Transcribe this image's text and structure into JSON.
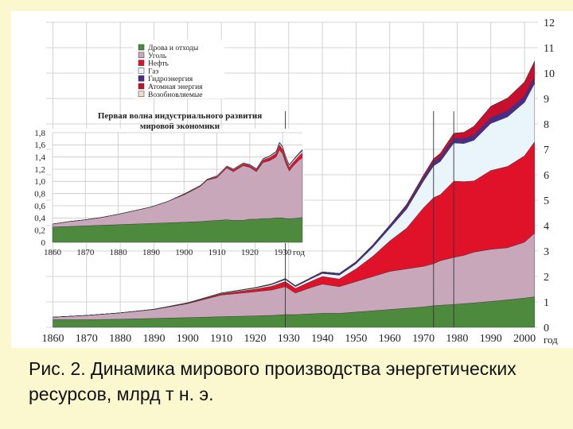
{
  "caption": "Рис. 2. Динамика мирового производства энергетических ресурсов, млрд т н. э.",
  "colors": {
    "wood": "#4e8a3e",
    "coal": "#c9a7bb",
    "oil": "#e0122a",
    "gas": "#eaf4fb",
    "hydro": "#4a2d8a",
    "nuclear": "#c8102e",
    "renewable": "#f2dcc8",
    "panel": "#ffffff",
    "background": "#fbf8d0"
  },
  "chart_data": [
    {
      "type": "area",
      "stacked": true,
      "title": "",
      "xlabel": "год",
      "ylabel": "",
      "x": [
        1860,
        1870,
        1880,
        1890,
        1900,
        1910,
        1920,
        1925,
        1929,
        1932,
        1937,
        1940,
        1945,
        1950,
        1955,
        1960,
        1965,
        1970,
        1973,
        1975,
        1979,
        1982,
        1985,
        1990,
        1995,
        2000,
        2003
      ],
      "xticks": [
        1860,
        1870,
        1880,
        1890,
        1900,
        1910,
        1920,
        1930,
        1940,
        1950,
        1960,
        1970,
        1980,
        1990,
        2000
      ],
      "xlim": [
        1858,
        2004
      ],
      "ylim": [
        0,
        12
      ],
      "yticks": [
        0,
        1,
        2,
        3,
        4,
        5,
        6,
        7,
        8,
        9,
        10,
        11,
        12
      ],
      "grid": true,
      "legend_position": "top-left",
      "series": [
        {
          "name": "Дрова и отходы",
          "key": "wood",
          "values": [
            0.3,
            0.3,
            0.32,
            0.35,
            0.38,
            0.42,
            0.45,
            0.47,
            0.5,
            0.5,
            0.53,
            0.55,
            0.55,
            0.6,
            0.65,
            0.7,
            0.75,
            0.8,
            0.85,
            0.87,
            0.9,
            0.93,
            0.96,
            1.02,
            1.08,
            1.15,
            1.2
          ]
        },
        {
          "name": "Уголь",
          "key": "coal",
          "values": [
            0.1,
            0.17,
            0.25,
            0.35,
            0.55,
            0.85,
            0.95,
            1.0,
            1.1,
            0.85,
            1.05,
            1.15,
            1.05,
            1.2,
            1.35,
            1.5,
            1.55,
            1.6,
            1.65,
            1.75,
            1.85,
            1.9,
            2.0,
            2.05,
            2.05,
            2.2,
            2.5
          ]
        },
        {
          "name": "Нефть",
          "key": "oil",
          "values": [
            0,
            0,
            0,
            0.01,
            0.02,
            0.05,
            0.1,
            0.15,
            0.2,
            0.18,
            0.25,
            0.3,
            0.3,
            0.5,
            0.8,
            1.2,
            1.6,
            2.3,
            2.6,
            2.6,
            3.0,
            2.9,
            2.8,
            3.1,
            3.2,
            3.4,
            3.6
          ]
        },
        {
          "name": "Газ",
          "key": "gas",
          "values": [
            0,
            0,
            0,
            0,
            0.01,
            0.02,
            0.04,
            0.06,
            0.08,
            0.07,
            0.1,
            0.12,
            0.15,
            0.2,
            0.35,
            0.5,
            0.75,
            1.05,
            1.25,
            1.3,
            1.5,
            1.5,
            1.6,
            1.85,
            1.95,
            2.1,
            2.3
          ]
        },
        {
          "name": "Гидроэнергия",
          "key": "hydro",
          "values": [
            0,
            0,
            0,
            0,
            0.005,
            0.01,
            0.02,
            0.03,
            0.04,
            0.04,
            0.05,
            0.06,
            0.07,
            0.08,
            0.1,
            0.12,
            0.13,
            0.15,
            0.16,
            0.17,
            0.18,
            0.19,
            0.2,
            0.22,
            0.24,
            0.25,
            0.26
          ]
        },
        {
          "name": "Атомная энергия",
          "key": "nuclear",
          "values": [
            0,
            0,
            0,
            0,
            0,
            0,
            0,
            0,
            0,
            0,
            0,
            0,
            0,
            0,
            0,
            0,
            0.05,
            0.08,
            0.12,
            0.15,
            0.2,
            0.25,
            0.35,
            0.45,
            0.5,
            0.55,
            0.6
          ]
        },
        {
          "name": "Возобновляемые",
          "key": "renewable",
          "values": [
            0,
            0,
            0,
            0,
            0,
            0,
            0,
            0,
            0,
            0,
            0,
            0,
            0,
            0,
            0,
            0,
            0,
            0,
            0,
            0,
            0,
            0,
            0,
            0,
            0,
            0,
            0.02
          ]
        }
      ],
      "vertical_lines": [
        1929,
        1973,
        1979
      ]
    },
    {
      "type": "area",
      "stacked": true,
      "title": "Первая волна индустриального развития мировой экономики",
      "xlabel": "год",
      "x": [
        1860,
        1865,
        1870,
        1875,
        1880,
        1885,
        1890,
        1895,
        1900,
        1905,
        1907,
        1910,
        1913,
        1915,
        1918,
        1920,
        1922,
        1924,
        1926,
        1928,
        1929,
        1930,
        1931,
        1932,
        1933,
        1935,
        1936
      ],
      "xticks": [
        1860,
        1870,
        1880,
        1890,
        1900,
        1910,
        1920,
        1930
      ],
      "xlim": [
        1860,
        1936
      ],
      "ylim": [
        0,
        1.8
      ],
      "yticks": [
        0,
        0.2,
        0.4,
        0.6,
        0.8,
        1.0,
        1.2,
        1.4,
        1.6,
        1.8
      ],
      "ytick_labels": [
        "0",
        "0,2",
        "0,4",
        "0,6",
        "0,8",
        "1,0",
        "1,2",
        "1,4",
        "1,6",
        "1,8"
      ],
      "series": [
        {
          "name": "Дрова и отходы",
          "key": "wood",
          "values": [
            0.25,
            0.26,
            0.27,
            0.28,
            0.29,
            0.3,
            0.31,
            0.32,
            0.33,
            0.34,
            0.35,
            0.36,
            0.37,
            0.36,
            0.36,
            0.38,
            0.38,
            0.39,
            0.39,
            0.4,
            0.4,
            0.4,
            0.39,
            0.39,
            0.39,
            0.4,
            0.41
          ]
        },
        {
          "name": "Уголь",
          "key": "coal",
          "values": [
            0.05,
            0.08,
            0.1,
            0.13,
            0.17,
            0.22,
            0.27,
            0.35,
            0.45,
            0.58,
            0.67,
            0.7,
            0.85,
            0.8,
            0.9,
            0.85,
            0.78,
            0.92,
            0.95,
            1.0,
            1.12,
            1.05,
            0.9,
            0.78,
            0.85,
            0.95,
            0.98
          ]
        },
        {
          "name": "Нефть",
          "key": "oil",
          "values": [
            0,
            0,
            0,
            0,
            0,
            0,
            0,
            0,
            0.01,
            0.01,
            0.01,
            0.02,
            0.02,
            0.03,
            0.03,
            0.03,
            0.03,
            0.04,
            0.05,
            0.06,
            0.08,
            0.08,
            0.07,
            0.06,
            0.06,
            0.07,
            0.08
          ]
        },
        {
          "name": "Газ",
          "key": "gas",
          "values": [
            0,
            0,
            0,
            0,
            0,
            0,
            0,
            0,
            0.005,
            0.005,
            0.005,
            0.01,
            0.01,
            0.01,
            0.01,
            0.01,
            0.01,
            0.015,
            0.02,
            0.02,
            0.03,
            0.03,
            0.03,
            0.03,
            0.03,
            0.03,
            0.035
          ]
        },
        {
          "name": "Гидроэнергия",
          "key": "hydro",
          "values": [
            0,
            0,
            0,
            0,
            0,
            0,
            0,
            0,
            0,
            0,
            0,
            0.005,
            0.005,
            0.005,
            0.005,
            0.01,
            0.01,
            0.01,
            0.01,
            0.015,
            0.015,
            0.015,
            0.015,
            0.015,
            0.015,
            0.02,
            0.02
          ]
        }
      ]
    }
  ]
}
